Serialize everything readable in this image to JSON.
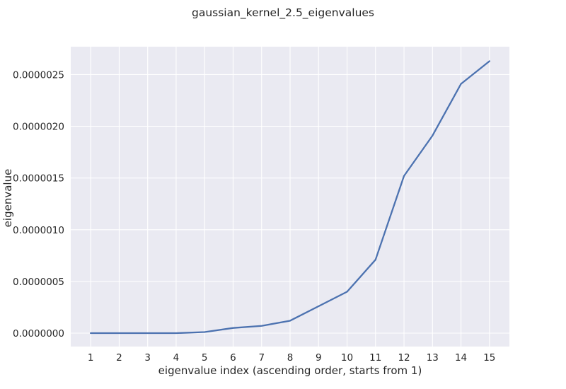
{
  "chart_data": {
    "type": "line",
    "title": "gaussian_kernel_2.5_eigenvalues",
    "xlabel": "eigenvalue index (ascending order, starts from 1)",
    "ylabel": "eigenvalue",
    "x": [
      1,
      2,
      3,
      4,
      5,
      6,
      7,
      8,
      9,
      10,
      11,
      12,
      13,
      14,
      15
    ],
    "series": [
      {
        "values": [
          0,
          0,
          0,
          0,
          1e-08,
          5e-08,
          7e-08,
          1.2e-07,
          2.6e-07,
          4e-07,
          7.1e-07,
          1.52e-06,
          1.91e-06,
          2.41e-06,
          2.63e-06
        ],
        "color": "#4c72b0"
      }
    ],
    "xticks": [
      "1",
      "2",
      "3",
      "4",
      "5",
      "6",
      "7",
      "8",
      "9",
      "10",
      "11",
      "12",
      "13",
      "14",
      "15"
    ],
    "yticks": [
      0,
      5e-07,
      1e-06,
      1.5e-06,
      2e-06,
      2.5e-06
    ],
    "ytick_labels": [
      "0.0000000",
      "0.0000005",
      "0.0000010",
      "0.0000015",
      "0.0000020",
      "0.0000025"
    ],
    "xlim": [
      0.3,
      15.7
    ],
    "ylim": [
      -1.3e-07,
      2.77e-06
    ],
    "grid": true,
    "background": "#eaeaf2",
    "grid_color": "#ffffff"
  }
}
